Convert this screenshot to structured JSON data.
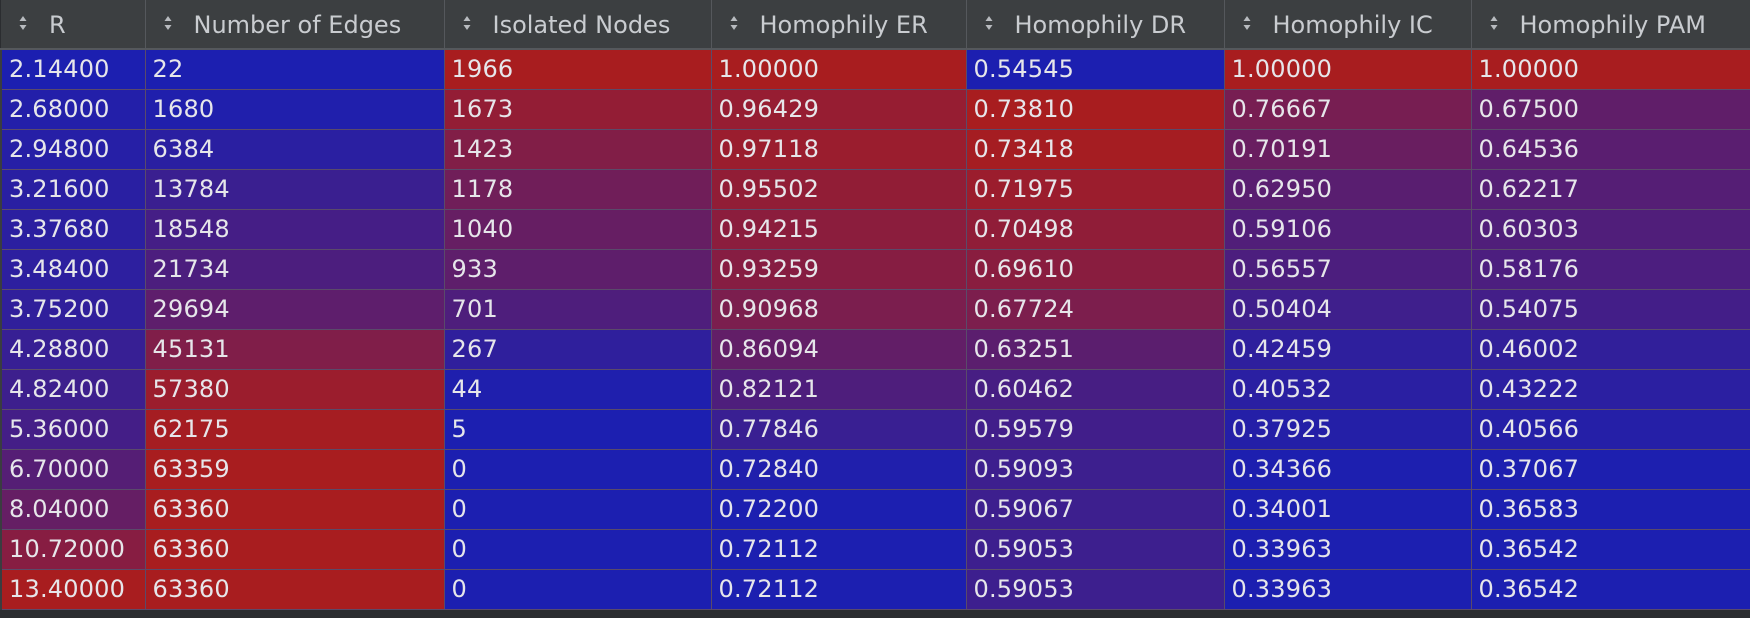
{
  "table": {
    "columns": [
      "R",
      "Number of Edges",
      "Isolated Nodes",
      "Homophily ER",
      "Homophily DR",
      "Homophily IC",
      "Homophily PAM"
    ],
    "rows": [
      [
        "2.14400",
        "22",
        "1966",
        "1.00000",
        "0.54545",
        "1.00000",
        "1.00000"
      ],
      [
        "2.68000",
        "1680",
        "1673",
        "0.96429",
        "0.73810",
        "0.76667",
        "0.67500"
      ],
      [
        "2.94800",
        "6384",
        "1423",
        "0.97118",
        "0.73418",
        "0.70191",
        "0.64536"
      ],
      [
        "3.21600",
        "13784",
        "1178",
        "0.95502",
        "0.71975",
        "0.62950",
        "0.62217"
      ],
      [
        "3.37680",
        "18548",
        "1040",
        "0.94215",
        "0.70498",
        "0.59106",
        "0.60303"
      ],
      [
        "3.48400",
        "21734",
        "933",
        "0.93259",
        "0.69610",
        "0.56557",
        "0.58176"
      ],
      [
        "3.75200",
        "29694",
        "701",
        "0.90968",
        "0.67724",
        "0.50404",
        "0.54075"
      ],
      [
        "4.28800",
        "45131",
        "267",
        "0.86094",
        "0.63251",
        "0.42459",
        "0.46002"
      ],
      [
        "4.82400",
        "57380",
        "44",
        "0.82121",
        "0.60462",
        "0.40532",
        "0.43222"
      ],
      [
        "5.36000",
        "62175",
        "5",
        "0.77846",
        "0.59579",
        "0.37925",
        "0.40566"
      ],
      [
        "6.70000",
        "63359",
        "0",
        "0.72840",
        "0.59093",
        "0.34366",
        "0.37067"
      ],
      [
        "8.04000",
        "63360",
        "0",
        "0.72200",
        "0.59067",
        "0.34001",
        "0.36583"
      ],
      [
        "10.72000",
        "63360",
        "0",
        "0.72112",
        "0.59053",
        "0.33963",
        "0.36542"
      ],
      [
        "13.40000",
        "63360",
        "0",
        "0.72112",
        "0.59053",
        "0.33963",
        "0.36542"
      ]
    ],
    "colormap": {
      "low_color": "#1c1fb0",
      "high_color": "#a81d1f"
    }
  },
  "icons": {
    "sort": "sort-updown-icon"
  }
}
